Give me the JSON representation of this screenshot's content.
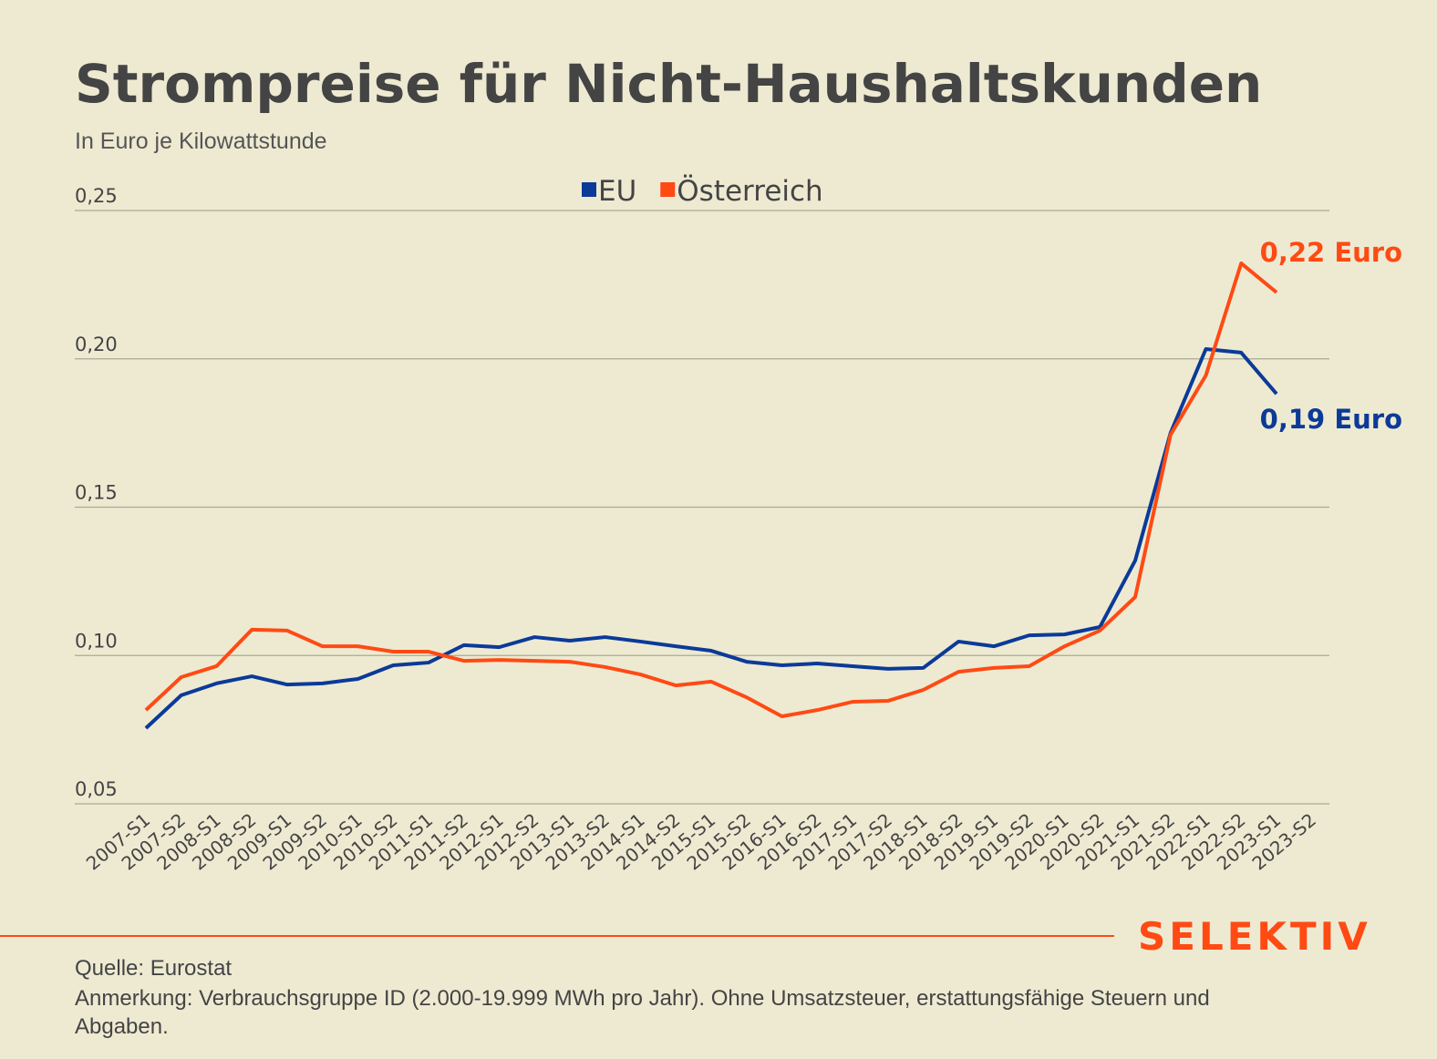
{
  "chart_data": {
    "type": "line",
    "title": "Strompreise für Nicht-Haushaltskunden",
    "subtitle": "In Euro je Kilowattstunde",
    "categories": [
      "2007-S1",
      "2007-S2",
      "2008-S1",
      "2008-S2",
      "2009-S1",
      "2009-S2",
      "2010-S1",
      "2010-S2",
      "2011-S1",
      "2011-S2",
      "2012-S1",
      "2012-S2",
      "2013-S1",
      "2013-S2",
      "2014-S1",
      "2014-S2",
      "2015-S1",
      "2015-S2",
      "2016-S1",
      "2016-S2",
      "2017-S1",
      "2017-S2",
      "2018-S1",
      "2018-S2",
      "2019-S1",
      "2019-S2",
      "2020-S1",
      "2020-S2",
      "2021-S1",
      "2021-S2",
      "2022-S1",
      "2022-S2",
      "2023-S1",
      "2023-S2"
    ],
    "series": [
      {
        "name": "EU",
        "color": "#0b3a98",
        "label": "0,19 Euro",
        "values": [
          0.0755,
          0.0866,
          0.0906,
          0.093,
          0.0902,
          0.0906,
          0.0921,
          0.0967,
          0.0976,
          0.1035,
          0.1028,
          0.1062,
          0.105,
          0.1062,
          0.1047,
          0.1031,
          0.1016,
          0.0979,
          0.0967,
          0.0973,
          0.0964,
          0.0955,
          0.0958,
          0.1047,
          0.1031,
          0.1068,
          0.1071,
          0.1096,
          0.132,
          0.175,
          0.2033,
          0.2021,
          0.1882,
          null
        ]
      },
      {
        "name": "Österreich",
        "color": "#ff4a14",
        "label": "0,22 Euro",
        "values": [
          0.0816,
          0.0927,
          0.0964,
          0.1087,
          0.1084,
          0.1031,
          0.1031,
          0.1013,
          0.1013,
          0.0982,
          0.0985,
          0.0982,
          0.0979,
          0.0961,
          0.0936,
          0.0899,
          0.0912,
          0.0859,
          0.0795,
          0.0816,
          0.0844,
          0.0847,
          0.0884,
          0.0945,
          0.0958,
          0.0964,
          0.1031,
          0.1084,
          0.1197,
          0.1744,
          0.1944,
          0.2322,
          0.2224,
          null
        ]
      }
    ],
    "ylim": [
      0.05,
      0.25
    ],
    "yticks": [
      {
        "value": 0.05,
        "label": "0,05"
      },
      {
        "value": 0.1,
        "label": "0,10"
      },
      {
        "value": 0.15,
        "label": "0,15"
      },
      {
        "value": 0.2,
        "label": "0,20"
      },
      {
        "value": 0.25,
        "label": "0,25"
      }
    ],
    "grid": true,
    "brand": "SELEKTIV",
    "source": "Quelle: Eurostat",
    "note": "Anmerkung: Verbrauchsgruppe ID (2.000-19.999 MWh pro Jahr). Ohne Umsatzsteuer, erstattungsfähige Steuern und Abgaben."
  }
}
